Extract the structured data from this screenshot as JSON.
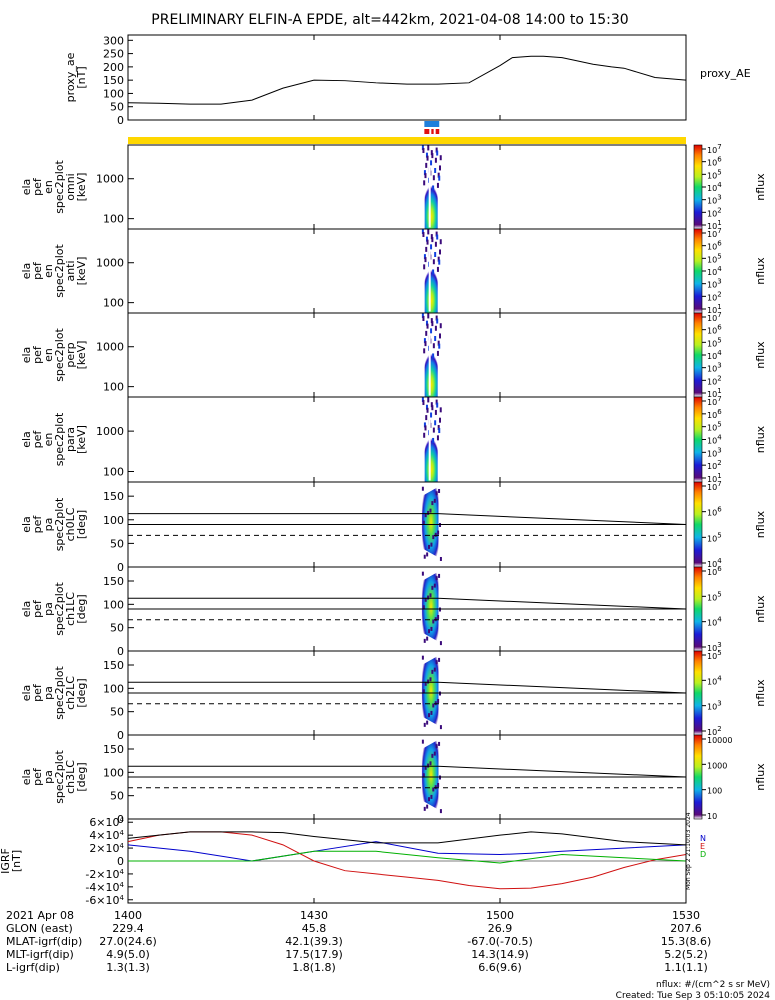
{
  "title": "PRELIMINARY ELFIN-A EPDE, alt=442km, 2021-04-08 14:00 to 15:30",
  "created": "Created: Tue Sep  3 05:10:05 2024",
  "nflux_units": "nflux: #/(cm^2 s sr MeV)",
  "side_timestamp": "Mon Sep  2 21:10:03 2024",
  "colors": {
    "gold": "#ffd700",
    "blue": "#1e7fdc",
    "red": "#e01010",
    "B_N": "#0000cc",
    "B_E": "#d01010",
    "B_D": "#00b000"
  },
  "chart_data": [
    {
      "type": "line",
      "name": "proxy_ae",
      "ylabel_lines": [
        "proxy_ae",
        "[nT]"
      ],
      "legend": "proxy_AE",
      "yticks": [
        "0",
        "50",
        "100",
        "150",
        "200",
        "250",
        "300"
      ],
      "ylim": [
        0,
        320
      ],
      "xlim": [
        0,
        90
      ],
      "x": [
        0,
        5,
        10,
        15,
        20,
        25,
        30,
        35,
        40,
        45,
        50,
        55,
        60,
        62,
        65,
        67,
        70,
        72,
        75,
        78,
        80,
        85,
        90
      ],
      "y": [
        65,
        63,
        60,
        60,
        75,
        120,
        150,
        148,
        140,
        135,
        135,
        140,
        205,
        235,
        240,
        240,
        235,
        225,
        210,
        200,
        195,
        160,
        150
      ]
    },
    {
      "type": "bar",
      "name": "data-coverage",
      "bars": [
        "gold full interval",
        "blue 14:48-14:50",
        "red 14:48-14:50"
      ]
    },
    {
      "type": "heatmap",
      "name": "omni",
      "ylabel_lines": [
        "ela",
        "pef",
        "en",
        "spec2plot",
        "omni",
        "[keV]"
      ],
      "yticks": [
        "100",
        "1000"
      ],
      "ylog": true,
      "ylim": [
        55,
        7000
      ],
      "colorbar": {
        "label": "nflux",
        "ticks": [
          "10^1",
          "10^2",
          "10^3",
          "10^4",
          "10^5",
          "10^6",
          "10^7"
        ]
      }
    },
    {
      "type": "heatmap",
      "name": "anti",
      "ylabel_lines": [
        "ela",
        "pef",
        "en",
        "spec2plot",
        "anti",
        "[keV]"
      ],
      "yticks": [
        "100",
        "1000"
      ],
      "ylog": true,
      "ylim": [
        55,
        7000
      ],
      "colorbar": {
        "label": "nflux",
        "ticks": [
          "10^1",
          "10^2",
          "10^3",
          "10^4",
          "10^5",
          "10^6",
          "10^7"
        ]
      }
    },
    {
      "type": "heatmap",
      "name": "perp",
      "ylabel_lines": [
        "ela",
        "pef",
        "en",
        "spec2plot",
        "perp",
        "[keV]"
      ],
      "yticks": [
        "100",
        "1000"
      ],
      "ylog": true,
      "ylim": [
        55,
        7000
      ],
      "colorbar": {
        "label": "nflux",
        "ticks": [
          "10^1",
          "10^2",
          "10^3",
          "10^4",
          "10^5",
          "10^6",
          "10^7"
        ]
      }
    },
    {
      "type": "heatmap",
      "name": "para",
      "ylabel_lines": [
        "ela",
        "pef",
        "en",
        "spec2plot",
        "para",
        "[keV]"
      ],
      "yticks": [
        "100",
        "1000"
      ],
      "ylog": true,
      "ylim": [
        55,
        7000
      ],
      "colorbar": {
        "label": "nflux",
        "ticks": [
          "10^1",
          "10^2",
          "10^3",
          "10^4",
          "10^5",
          "10^6",
          "10^7"
        ]
      }
    },
    {
      "type": "heatmap",
      "name": "ch0LC",
      "ylabel_lines": [
        "ela",
        "pef",
        "pa",
        "spec2plot",
        "ch0LC",
        "[deg]"
      ],
      "yticks": [
        "0",
        "50",
        "100",
        "150"
      ],
      "ylim": [
        0,
        180
      ],
      "lines_deg": [
        113,
        90,
        67
      ],
      "colorbar": {
        "label": "nflux",
        "ticks": [
          "10^4",
          "10^5",
          "10^6",
          "10^7"
        ]
      }
    },
    {
      "type": "heatmap",
      "name": "ch1LC",
      "ylabel_lines": [
        "ela",
        "pef",
        "pa",
        "spec2plot",
        "ch1LC",
        "[deg]"
      ],
      "yticks": [
        "0",
        "50",
        "100",
        "150"
      ],
      "ylim": [
        0,
        180
      ],
      "lines_deg": [
        113,
        90,
        67
      ],
      "colorbar": {
        "label": "nflux",
        "ticks": [
          "10^3",
          "10^4",
          "10^5",
          "10^6"
        ]
      }
    },
    {
      "type": "heatmap",
      "name": "ch2LC",
      "ylabel_lines": [
        "ela",
        "pef",
        "pa",
        "spec2plot",
        "ch2LC",
        "[deg]"
      ],
      "yticks": [
        "0",
        "50",
        "100",
        "150"
      ],
      "ylim": [
        0,
        180
      ],
      "lines_deg": [
        113,
        90,
        67
      ],
      "colorbar": {
        "label": "nflux",
        "ticks": [
          "10^2",
          "10^3",
          "10^4",
          "10^5"
        ]
      }
    },
    {
      "type": "heatmap",
      "name": "ch3LC",
      "ylabel_lines": [
        "ela",
        "pef",
        "pa",
        "spec2plot",
        "ch3LC",
        "[deg]"
      ],
      "yticks": [
        "0",
        "50",
        "100",
        "150"
      ],
      "ylim": [
        0,
        180
      ],
      "lines_deg": [
        113,
        90,
        67
      ],
      "colorbar": {
        "label": "nflux",
        "ticks": [
          "10",
          "100",
          "1000",
          "10000"
        ]
      }
    },
    {
      "type": "line",
      "name": "IGRF",
      "ylabel_lines": [
        "IGRF",
        "[nT]"
      ],
      "yticks": [
        "-6x10^4",
        "-4x10^4",
        "-2x10^4",
        "0",
        "2x10^4",
        "4x10^4",
        "6x10^4"
      ],
      "ylim": [
        -65000,
        65000
      ],
      "xlim": [
        0,
        90
      ],
      "series": [
        {
          "name": "N",
          "color": "#0000cc",
          "x": [
            0,
            10,
            20,
            30,
            40,
            50,
            60,
            65,
            70,
            80,
            90
          ],
          "y": [
            25000,
            15000,
            0,
            15000,
            30000,
            12000,
            10000,
            12000,
            15000,
            20000,
            25000
          ]
        },
        {
          "name": "E",
          "color": "#d01010",
          "x": [
            0,
            5,
            10,
            15,
            20,
            25,
            30,
            35,
            40,
            45,
            50,
            55,
            60,
            65,
            70,
            75,
            80,
            85,
            90
          ],
          "y": [
            30000,
            40000,
            45000,
            45000,
            40000,
            25000,
            0,
            -15000,
            -20000,
            -25000,
            -30000,
            -38000,
            -43000,
            -42000,
            -35000,
            -25000,
            -10000,
            2000,
            10000
          ]
        },
        {
          "name": "D",
          "color": "#00b000",
          "x": [
            0,
            20,
            30,
            40,
            50,
            60,
            70,
            80,
            90
          ],
          "y": [
            0,
            0,
            15000,
            15000,
            5000,
            -3000,
            10000,
            5000,
            0
          ]
        },
        {
          "name": "",
          "color": "#000000",
          "x": [
            0,
            10,
            15,
            20,
            25,
            30,
            40,
            50,
            60,
            65,
            70,
            80,
            90
          ],
          "y": [
            35000,
            45000,
            45000,
            45000,
            44000,
            38000,
            28000,
            28000,
            40000,
            45000,
            42000,
            30000,
            25000
          ]
        }
      ]
    }
  ],
  "x_axis": {
    "row_labels": [
      "2021 Apr 08",
      "GLON (east)",
      "MLAT-igrf(dip)",
      "MLT-igrf(dip)",
      "L-igrf(dip)"
    ],
    "columns": [
      {
        "x": 0,
        "values": [
          "1400",
          "229.4",
          "27.0(24.6)",
          "4.9(5.0)",
          "1.3(1.3)"
        ]
      },
      {
        "x": 30,
        "values": [
          "1430",
          "45.8",
          "42.1(39.3)",
          "17.5(17.9)",
          "1.8(1.8)"
        ]
      },
      {
        "x": 60,
        "values": [
          "1500",
          "26.9",
          "-67.0(-70.5)",
          "14.3(14.9)",
          "6.6(9.6)"
        ]
      },
      {
        "x": 90,
        "values": [
          "1530",
          "207.6",
          "15.3(8.6)",
          "5.2(5.2)",
          "1.1(1.1)"
        ]
      }
    ]
  }
}
